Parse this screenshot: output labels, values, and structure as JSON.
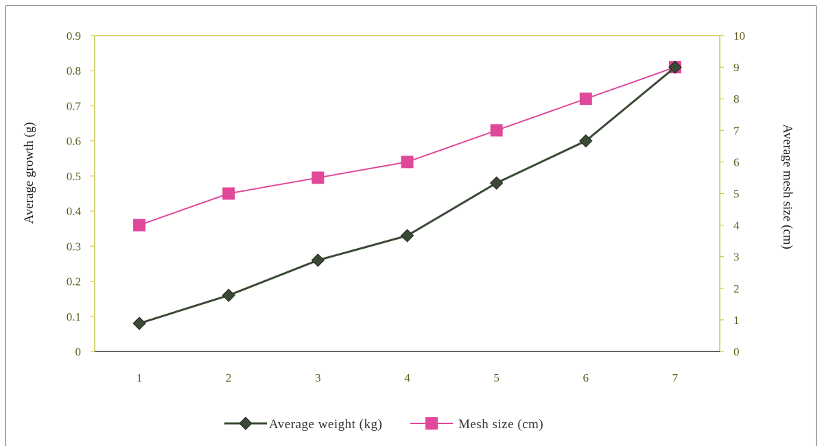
{
  "chart_data": {
    "type": "line",
    "x": [
      1,
      2,
      3,
      4,
      5,
      6,
      7
    ],
    "series": [
      {
        "name": "Average weight (kg)",
        "axis": "left",
        "values": [
          0.08,
          0.16,
          0.26,
          0.33,
          0.48,
          0.6,
          0.81
        ],
        "color": "#3a4a35",
        "marker": "diamond"
      },
      {
        "name": "Mesh size (cm)",
        "axis": "right",
        "values": [
          4,
          5,
          5.5,
          6,
          7,
          8,
          9
        ],
        "color": "#e0489a",
        "marker": "square"
      }
    ],
    "ylabel": "Average growth (g)",
    "y2label": "Average mesh size (cm)",
    "ylim": [
      0,
      0.9
    ],
    "y2lim": [
      0,
      10
    ],
    "yticks": [
      "0",
      "0.1",
      "0.2",
      "0.3",
      "0.4",
      "0.5",
      "0.6",
      "0.7",
      "0.8",
      "0.9"
    ],
    "y2ticks": [
      "0",
      "1",
      "2",
      "3",
      "4",
      "5",
      "6",
      "7",
      "8",
      "9",
      "10"
    ],
    "xticks": [
      "1",
      "2",
      "3",
      "4",
      "5",
      "6",
      "7"
    ],
    "legend_position": "bottom",
    "grid": false,
    "axis_color": "#c8c84a"
  }
}
